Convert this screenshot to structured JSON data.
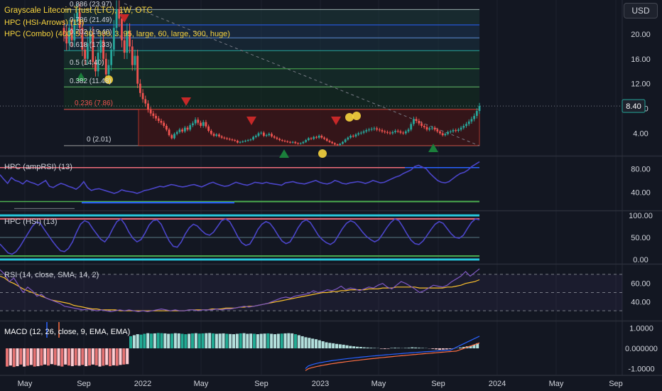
{
  "title": "Grayscale Litecoin Trust (LTC), 1W, OTC",
  "currency_button": "USD",
  "colors": {
    "bg": "#131722",
    "grid": "#1e222d",
    "text": "#d1d4dc",
    "up": "#26a69a",
    "down": "#ef5350",
    "purple": "#4b45c9",
    "red_line": "#f06c7a",
    "green_line": "#4caf50",
    "cyan": "#26c6da",
    "yellow": "#f7d43e",
    "orange": "#ff7043",
    "blue": "#2962ff",
    "teal": "#22ab94",
    "teal_light": "#b2dfdb",
    "red_light": "#ffcdd2",
    "box_fill": "#3a1518",
    "arrow_red": "#c62828",
    "arrow_green": "#1b7f3b"
  },
  "price_pane": {
    "last_price": "8.40",
    "y_ticks": [
      "20.00",
      "16.00",
      "12.00",
      "8.00",
      "4.00"
    ],
    "indicators": [
      "HPC (HSI-Arrows) (13)",
      "HPC (Combo) (400, 5, 30, 300, 3, 95, large, 60, large, 300, huge)"
    ],
    "fib_labels": [
      "0.886 (23.97)",
      "0.786 (21.49)",
      "0.702 (19.40)",
      "0.618 (17.33)",
      "0.5 (14.40)",
      "0.382 (11.48)",
      "0.236 (7.86)",
      "0 (2.01)"
    ],
    "fib_values": [
      23.97,
      21.49,
      19.4,
      17.33,
      14.4,
      11.48,
      7.86,
      2.01
    ],
    "ylim": [
      0.5,
      25.5
    ]
  },
  "amprsi_pane": {
    "label": "HPC (ampRSI) (13)",
    "y_ticks": [
      "80.00",
      "40.00"
    ],
    "ylim": [
      10,
      100
    ]
  },
  "hsi_pane": {
    "label": "HPC (HSI) (13)",
    "y_ticks": [
      "100.00",
      "50.00",
      "0.00"
    ],
    "ylim": [
      -8,
      108
    ]
  },
  "rsi_pane": {
    "label": "RSI (14, close, SMA, 14, 2)",
    "y_ticks": [
      "60.00",
      "40.00"
    ],
    "ylim": [
      20,
      80
    ]
  },
  "macd_pane": {
    "label": "MACD (12, 26, close, 9, EMA, EMA)",
    "y_ticks": [
      "1.0000",
      "0.000000",
      "-1.0000"
    ],
    "ylim": [
      -1.3,
      1.3
    ]
  },
  "time_axis": [
    "May",
    "Sep",
    "2022",
    "May",
    "Sep",
    "2023",
    "May",
    "Sep",
    "2024",
    "May",
    "Sep"
  ],
  "chart_data": {
    "type": "candlestick",
    "title": "Grayscale Litecoin Trust (LTC), 1W, OTC",
    "x_start_week": 0,
    "closes": [
      20,
      18.5,
      21,
      19,
      22,
      23.5,
      21,
      17.5,
      16,
      18.5,
      20,
      15.5,
      14,
      17,
      19,
      16,
      13.5,
      15,
      17.5,
      21,
      24,
      22.5,
      19,
      17,
      20.5,
      18,
      15,
      16.5,
      12,
      10.5,
      9.5,
      8.8,
      7.8,
      7.2,
      6.8,
      6.4,
      6.0,
      5.7,
      5.2,
      4.6,
      3.7,
      3.2,
      3.9,
      4.2,
      4.6,
      4.3,
      4.9,
      4.6,
      5.3,
      5.6,
      6.2,
      5.7,
      5.2,
      5.8,
      5.1,
      4.4,
      3.9,
      3.6,
      3.8,
      3.5,
      3.3,
      3.2,
      3.1,
      3.0,
      2.9,
      2.8,
      2.5,
      2.6,
      2.7,
      2.8,
      2.9,
      3.0,
      3.4,
      3.6,
      4.0,
      4.1,
      3.6,
      3.7,
      3.9,
      3.5,
      3.3,
      3.1,
      2.9,
      2.8,
      2.7,
      2.6,
      2.5,
      2.6,
      2.4,
      2.3,
      2.4,
      2.6,
      2.9,
      3.2,
      3.1,
      3.4,
      3.3,
      3.6,
      3.3,
      3.1,
      2.8,
      2.6,
      2.4,
      2.2,
      2.1,
      2.3,
      2.6,
      3.0,
      3.3,
      3.6,
      3.5,
      3.8,
      4.0,
      4.1,
      4.3,
      4.5,
      4.6,
      4.7,
      4.8,
      4.6,
      4.5,
      4.3,
      4.2,
      4.1,
      4.0,
      4.2,
      4.4,
      4.3,
      4.1,
      4.0,
      4.3,
      4.6,
      5.5,
      6.3,
      6.0,
      5.6,
      5.2,
      5.0,
      4.6,
      4.8,
      4.9,
      4.6,
      4.3,
      4.0,
      3.7,
      3.9,
      4.2,
      4.3,
      4.5,
      4.4,
      4.6,
      4.9,
      5.2,
      5.5,
      5.9,
      6.3,
      6.8,
      7.6,
      8.4
    ],
    "ampRSI": [
      70,
      62,
      55,
      65,
      60,
      58,
      54,
      60,
      57,
      55,
      52,
      56,
      60,
      50,
      48,
      52,
      55,
      53,
      50,
      48,
      45,
      50,
      58,
      48,
      43,
      45,
      46,
      44,
      42,
      40,
      38,
      40,
      44,
      42,
      41,
      40,
      38,
      40,
      43,
      44,
      46,
      48,
      50,
      49,
      51,
      53,
      52,
      50,
      49,
      50,
      52,
      53,
      51,
      49,
      52,
      55,
      57,
      54,
      52,
      50,
      51,
      54,
      57,
      55,
      53,
      52,
      54,
      57,
      56,
      55,
      57,
      55,
      54,
      53,
      52,
      56,
      57,
      58,
      56,
      55,
      54,
      56,
      58,
      60,
      57,
      55,
      54,
      56,
      60,
      58,
      55,
      54,
      56,
      57,
      58,
      57,
      55,
      57,
      60,
      58,
      56,
      57,
      60,
      63,
      66,
      68,
      72,
      75,
      78,
      84,
      86,
      83,
      80,
      72,
      66,
      60,
      57,
      56,
      58,
      63,
      68,
      72,
      74,
      78,
      84,
      88,
      92
    ],
    "HSI": [
      35,
      25,
      15,
      12,
      18,
      30,
      45,
      60,
      75,
      85,
      82,
      68,
      55,
      42,
      30,
      20,
      18,
      25,
      40,
      62,
      80,
      88,
      84,
      70,
      58,
      46,
      40,
      52,
      70,
      86,
      92,
      80,
      62,
      48,
      40,
      45,
      60,
      78,
      88,
      90,
      80,
      60,
      42,
      30,
      28,
      40,
      58,
      72,
      80,
      76,
      66,
      58,
      55,
      62,
      75,
      88,
      92,
      86,
      70,
      52,
      38,
      32,
      35,
      50,
      68,
      80,
      86,
      82,
      70,
      55,
      42,
      36,
      40,
      55,
      72,
      85,
      90,
      84,
      70,
      55,
      45,
      38,
      34,
      40,
      55,
      70,
      82,
      88,
      84,
      74,
      62,
      52,
      45,
      40,
      45,
      58,
      72,
      84,
      92,
      88,
      74,
      58,
      44,
      36,
      34,
      42,
      55,
      68,
      80,
      86,
      82,
      70,
      58,
      50,
      48,
      55,
      70,
      84,
      92,
      90
    ],
    "RSI": [
      75,
      70,
      62,
      66,
      58,
      50,
      56,
      52,
      46,
      48,
      44,
      42,
      40,
      38,
      35,
      34,
      33,
      32,
      31,
      32,
      31,
      30,
      31,
      30,
      29,
      30,
      31,
      30,
      31,
      30,
      29,
      30,
      29,
      30,
      31,
      32,
      31,
      30,
      31,
      30,
      30,
      31,
      31,
      30,
      31,
      31,
      31,
      32,
      31,
      32,
      32,
      33,
      34,
      35,
      34,
      35,
      36,
      37,
      38,
      40,
      42,
      44,
      45,
      44,
      46,
      47,
      48,
      49,
      52,
      50,
      51,
      53,
      52,
      54,
      57,
      53,
      55,
      54,
      52,
      54,
      56,
      55,
      58,
      60,
      56,
      54,
      58,
      62,
      60,
      57,
      54,
      50,
      52,
      55,
      58,
      57,
      56,
      58,
      62,
      65,
      68,
      73,
      68,
      72,
      76
    ],
    "RSI_MA": [
      68,
      66,
      62,
      60,
      57,
      54,
      52,
      50,
      48,
      46,
      44,
      42,
      41,
      40,
      39,
      38,
      36,
      35,
      34,
      33,
      32,
      32,
      31,
      31,
      31,
      31,
      30,
      30,
      30,
      30,
      30,
      30,
      30,
      30,
      30,
      30,
      30,
      30,
      30,
      30,
      30,
      31,
      31,
      31,
      31,
      31,
      32,
      32,
      32,
      33,
      33,
      33,
      34,
      34,
      35,
      35,
      36,
      37,
      38,
      39,
      40,
      41,
      42,
      43,
      44,
      45,
      46,
      47,
      48,
      49,
      50,
      50,
      51,
      51,
      52,
      52,
      53,
      53,
      53,
      53,
      54,
      54,
      54,
      55,
      55,
      55,
      56,
      56,
      56,
      56,
      56,
      55,
      55,
      55,
      55,
      55,
      55,
      56,
      56,
      57,
      58,
      60,
      61,
      62,
      64
    ],
    "MACD_hist": [
      -0.9,
      -0.85,
      -0.92,
      -0.88,
      -0.8,
      -0.9,
      -0.86,
      -0.82,
      -0.9,
      -0.88,
      -0.85,
      -0.8,
      -0.85,
      -0.78,
      -0.82,
      -0.86,
      -0.9,
      -0.8,
      -0.85,
      -0.88,
      -0.84,
      -0.86,
      -0.82,
      -0.88,
      -0.85,
      -0.8,
      -0.84,
      -0.9,
      -0.86,
      -0.82,
      -0.88,
      -0.84,
      -0.86,
      -0.82,
      -0.8,
      -0.78,
      0.6,
      0.65,
      0.7,
      0.68,
      0.72,
      0.75,
      0.73,
      0.74,
      0.76,
      0.75,
      0.74,
      0.72,
      0.73,
      0.75,
      0.74,
      0.72,
      0.7,
      0.72,
      0.74,
      0.75,
      0.73,
      0.74,
      0.75,
      0.76,
      0.74,
      0.72,
      0.73,
      0.74,
      0.72,
      0.71,
      0.7,
      0.72,
      0.74,
      0.75,
      0.72,
      0.73,
      0.72,
      0.7,
      0.72,
      0.73,
      0.74,
      0.72,
      0.7,
      0.72,
      0.73,
      0.74,
      0.75,
      0.74,
      0.7,
      0.65,
      0.6,
      0.55,
      0.52,
      0.48,
      0.45,
      0.4,
      0.35,
      0.3,
      0.27,
      0.25,
      0.22,
      0.2,
      0.18,
      0.15,
      0.12,
      0.1,
      0.08,
      0.07,
      0.05,
      0.04,
      0.03,
      0.02,
      0.01,
      -0.02,
      -0.03,
      -0.02,
      0.02,
      0.03,
      0.02,
      0.01,
      0.02,
      0.03,
      0.05,
      0.04,
      0.03,
      0.02,
      0.01,
      -0.01,
      -0.03,
      -0.05,
      -0.07,
      -0.06,
      -0.05,
      -0.03,
      -0.02,
      0.01,
      0.04,
      0.07,
      0.1,
      0.12,
      0.18,
      0.25
    ]
  }
}
